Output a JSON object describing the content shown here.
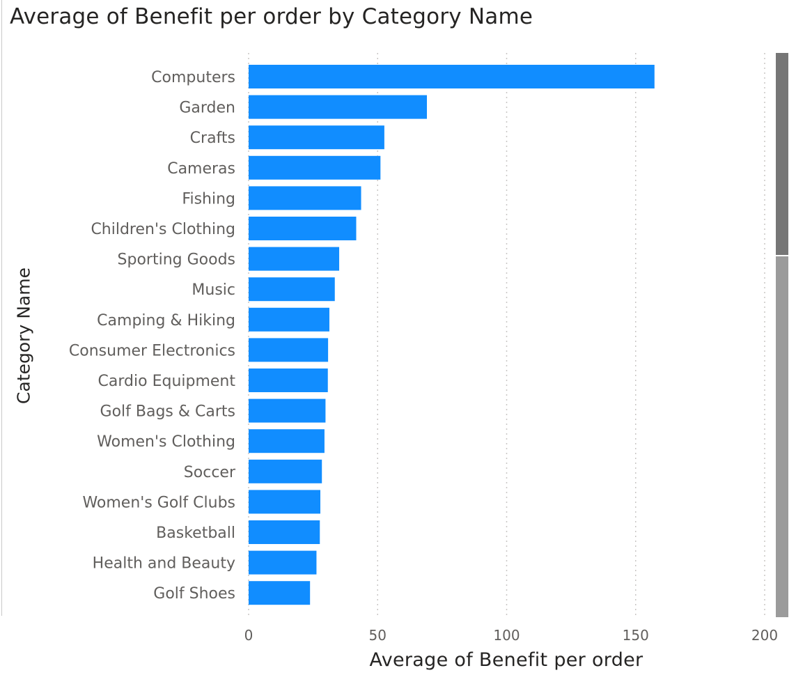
{
  "chart_data": {
    "type": "bar",
    "orientation": "horizontal",
    "title": "Average of Benefit per order by Category Name",
    "xlabel": "Average of Benefit per order",
    "ylabel": "Category Name",
    "xlim": [
      0,
      200
    ],
    "xticks": [
      "0",
      "50",
      "100",
      "150",
      "200"
    ],
    "grid": true,
    "legend": "none",
    "bar_color": "#118DFF",
    "categories": [
      "Computers",
      "Garden",
      "Crafts",
      "Cameras",
      "Fishing",
      "Children's Clothing",
      "Sporting Goods",
      "Music",
      "Camping & Hiking",
      "Consumer Electronics",
      "Cardio Equipment",
      "Golf Bags & Carts",
      "Women's Clothing",
      "Soccer",
      "Women's Golf Clubs",
      "Basketball",
      "Health and Beauty",
      "Golf Shoes"
    ],
    "values": [
      157.3,
      69.1,
      52.6,
      51.1,
      43.6,
      41.7,
      35.1,
      33.4,
      31.3,
      30.8,
      30.7,
      29.8,
      29.4,
      28.4,
      27.8,
      27.6,
      26.3,
      23.8
    ]
  },
  "scrollbar": {
    "position": 0.36
  }
}
